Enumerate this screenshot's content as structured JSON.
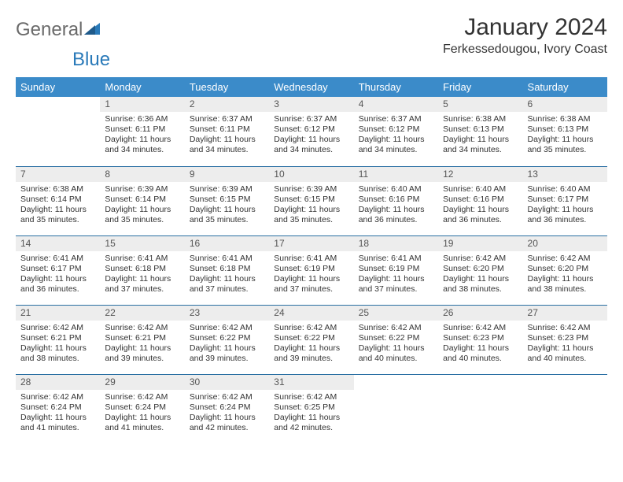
{
  "logo": {
    "text1": "General",
    "text2": "Blue"
  },
  "title": "January 2024",
  "subtitle": "Ferkessedougou, Ivory Coast",
  "colors": {
    "header_bg": "#3b8bc9",
    "header_fg": "#ffffff",
    "daynum_bg": "#ededed",
    "rule": "#2a6fa3",
    "logo_gray": "#6a6a6a",
    "logo_blue": "#2a7ab9",
    "text": "#333333",
    "page_bg": "#ffffff"
  },
  "weekdays": [
    "Sunday",
    "Monday",
    "Tuesday",
    "Wednesday",
    "Thursday",
    "Friday",
    "Saturday"
  ],
  "weeks": [
    [
      {
        "day": "",
        "sunrise": "",
        "sunset": "",
        "daylight": ""
      },
      {
        "day": "1",
        "sunrise": "Sunrise: 6:36 AM",
        "sunset": "Sunset: 6:11 PM",
        "daylight": "Daylight: 11 hours and 34 minutes."
      },
      {
        "day": "2",
        "sunrise": "Sunrise: 6:37 AM",
        "sunset": "Sunset: 6:11 PM",
        "daylight": "Daylight: 11 hours and 34 minutes."
      },
      {
        "day": "3",
        "sunrise": "Sunrise: 6:37 AM",
        "sunset": "Sunset: 6:12 PM",
        "daylight": "Daylight: 11 hours and 34 minutes."
      },
      {
        "day": "4",
        "sunrise": "Sunrise: 6:37 AM",
        "sunset": "Sunset: 6:12 PM",
        "daylight": "Daylight: 11 hours and 34 minutes."
      },
      {
        "day": "5",
        "sunrise": "Sunrise: 6:38 AM",
        "sunset": "Sunset: 6:13 PM",
        "daylight": "Daylight: 11 hours and 34 minutes."
      },
      {
        "day": "6",
        "sunrise": "Sunrise: 6:38 AM",
        "sunset": "Sunset: 6:13 PM",
        "daylight": "Daylight: 11 hours and 35 minutes."
      }
    ],
    [
      {
        "day": "7",
        "sunrise": "Sunrise: 6:38 AM",
        "sunset": "Sunset: 6:14 PM",
        "daylight": "Daylight: 11 hours and 35 minutes."
      },
      {
        "day": "8",
        "sunrise": "Sunrise: 6:39 AM",
        "sunset": "Sunset: 6:14 PM",
        "daylight": "Daylight: 11 hours and 35 minutes."
      },
      {
        "day": "9",
        "sunrise": "Sunrise: 6:39 AM",
        "sunset": "Sunset: 6:15 PM",
        "daylight": "Daylight: 11 hours and 35 minutes."
      },
      {
        "day": "10",
        "sunrise": "Sunrise: 6:39 AM",
        "sunset": "Sunset: 6:15 PM",
        "daylight": "Daylight: 11 hours and 35 minutes."
      },
      {
        "day": "11",
        "sunrise": "Sunrise: 6:40 AM",
        "sunset": "Sunset: 6:16 PM",
        "daylight": "Daylight: 11 hours and 36 minutes."
      },
      {
        "day": "12",
        "sunrise": "Sunrise: 6:40 AM",
        "sunset": "Sunset: 6:16 PM",
        "daylight": "Daylight: 11 hours and 36 minutes."
      },
      {
        "day": "13",
        "sunrise": "Sunrise: 6:40 AM",
        "sunset": "Sunset: 6:17 PM",
        "daylight": "Daylight: 11 hours and 36 minutes."
      }
    ],
    [
      {
        "day": "14",
        "sunrise": "Sunrise: 6:41 AM",
        "sunset": "Sunset: 6:17 PM",
        "daylight": "Daylight: 11 hours and 36 minutes."
      },
      {
        "day": "15",
        "sunrise": "Sunrise: 6:41 AM",
        "sunset": "Sunset: 6:18 PM",
        "daylight": "Daylight: 11 hours and 37 minutes."
      },
      {
        "day": "16",
        "sunrise": "Sunrise: 6:41 AM",
        "sunset": "Sunset: 6:18 PM",
        "daylight": "Daylight: 11 hours and 37 minutes."
      },
      {
        "day": "17",
        "sunrise": "Sunrise: 6:41 AM",
        "sunset": "Sunset: 6:19 PM",
        "daylight": "Daylight: 11 hours and 37 minutes."
      },
      {
        "day": "18",
        "sunrise": "Sunrise: 6:41 AM",
        "sunset": "Sunset: 6:19 PM",
        "daylight": "Daylight: 11 hours and 37 minutes."
      },
      {
        "day": "19",
        "sunrise": "Sunrise: 6:42 AM",
        "sunset": "Sunset: 6:20 PM",
        "daylight": "Daylight: 11 hours and 38 minutes."
      },
      {
        "day": "20",
        "sunrise": "Sunrise: 6:42 AM",
        "sunset": "Sunset: 6:20 PM",
        "daylight": "Daylight: 11 hours and 38 minutes."
      }
    ],
    [
      {
        "day": "21",
        "sunrise": "Sunrise: 6:42 AM",
        "sunset": "Sunset: 6:21 PM",
        "daylight": "Daylight: 11 hours and 38 minutes."
      },
      {
        "day": "22",
        "sunrise": "Sunrise: 6:42 AM",
        "sunset": "Sunset: 6:21 PM",
        "daylight": "Daylight: 11 hours and 39 minutes."
      },
      {
        "day": "23",
        "sunrise": "Sunrise: 6:42 AM",
        "sunset": "Sunset: 6:22 PM",
        "daylight": "Daylight: 11 hours and 39 minutes."
      },
      {
        "day": "24",
        "sunrise": "Sunrise: 6:42 AM",
        "sunset": "Sunset: 6:22 PM",
        "daylight": "Daylight: 11 hours and 39 minutes."
      },
      {
        "day": "25",
        "sunrise": "Sunrise: 6:42 AM",
        "sunset": "Sunset: 6:22 PM",
        "daylight": "Daylight: 11 hours and 40 minutes."
      },
      {
        "day": "26",
        "sunrise": "Sunrise: 6:42 AM",
        "sunset": "Sunset: 6:23 PM",
        "daylight": "Daylight: 11 hours and 40 minutes."
      },
      {
        "day": "27",
        "sunrise": "Sunrise: 6:42 AM",
        "sunset": "Sunset: 6:23 PM",
        "daylight": "Daylight: 11 hours and 40 minutes."
      }
    ],
    [
      {
        "day": "28",
        "sunrise": "Sunrise: 6:42 AM",
        "sunset": "Sunset: 6:24 PM",
        "daylight": "Daylight: 11 hours and 41 minutes."
      },
      {
        "day": "29",
        "sunrise": "Sunrise: 6:42 AM",
        "sunset": "Sunset: 6:24 PM",
        "daylight": "Daylight: 11 hours and 41 minutes."
      },
      {
        "day": "30",
        "sunrise": "Sunrise: 6:42 AM",
        "sunset": "Sunset: 6:24 PM",
        "daylight": "Daylight: 11 hours and 42 minutes."
      },
      {
        "day": "31",
        "sunrise": "Sunrise: 6:42 AM",
        "sunset": "Sunset: 6:25 PM",
        "daylight": "Daylight: 11 hours and 42 minutes."
      },
      {
        "day": "",
        "sunrise": "",
        "sunset": "",
        "daylight": ""
      },
      {
        "day": "",
        "sunrise": "",
        "sunset": "",
        "daylight": ""
      },
      {
        "day": "",
        "sunrise": "",
        "sunset": "",
        "daylight": ""
      }
    ]
  ]
}
